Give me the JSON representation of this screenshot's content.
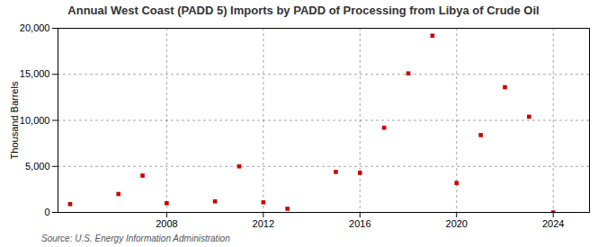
{
  "chart_data": {
    "type": "scatter",
    "title": "Annual West Coast (PADD 5) Imports by PADD of Processing from Libya of Crude Oil",
    "ylabel": "Thousand Barrels",
    "source": "Source: U.S. Energy Information Administration",
    "x": [
      2004,
      2006,
      2007,
      2008,
      2010,
      2011,
      2012,
      2013,
      2015,
      2016,
      2017,
      2018,
      2019,
      2020,
      2021,
      2022,
      2023,
      2024
    ],
    "values": [
      900,
      2000,
      4000,
      1000,
      1200,
      5000,
      1100,
      400,
      4400,
      4300,
      9200,
      15100,
      19200,
      3200,
      8400,
      13600,
      10400,
      0
    ],
    "color": "#cc0000",
    "marker": "square",
    "xlim": [
      2003.5,
      2025.5
    ],
    "ylim": [
      0,
      20000
    ],
    "xticks": [
      2008,
      2012,
      2016,
      2020,
      2024
    ],
    "yticks": [
      0,
      {
        "value": 5000,
        "label": "5,000"
      },
      {
        "value": 10000,
        "label": "10,000"
      },
      {
        "value": 15000,
        "label": "15,000"
      },
      {
        "value": 20000,
        "label": "20,000"
      }
    ],
    "grid": true
  }
}
